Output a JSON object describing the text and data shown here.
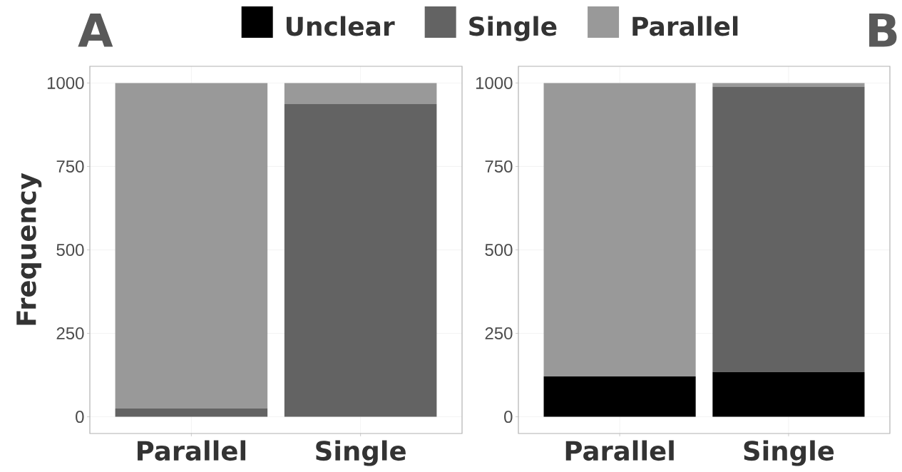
{
  "chart_data": [
    {
      "type": "bar",
      "title": "A",
      "ylabel": "Frequency",
      "categories": [
        "Parallel",
        "Single"
      ],
      "stacked": true,
      "grid": true,
      "ylim": [
        -50,
        1050
      ],
      "yticks": [
        0,
        250,
        500,
        750,
        1000
      ],
      "series": [
        {
          "color": "#636363",
          "values": [
            25,
            937
          ]
        },
        {
          "color": "#999999",
          "values": [
            975,
            63
          ]
        }
      ]
    },
    {
      "type": "bar",
      "title": "B",
      "categories": [
        "Parallel",
        "Single"
      ],
      "stacked": true,
      "grid": true,
      "legend": "top",
      "ylim": [
        -50,
        1050
      ],
      "yticks": [
        0,
        250,
        500,
        750,
        1000
      ],
      "series": [
        {
          "name": "Unclear",
          "color": "#000000",
          "values": [
            121,
            134
          ]
        },
        {
          "name": "Single",
          "color": "#636363",
          "values": [
            0,
            855
          ]
        },
        {
          "name": "Parallel",
          "color": "#999999",
          "values": [
            879,
            11
          ]
        }
      ]
    }
  ]
}
